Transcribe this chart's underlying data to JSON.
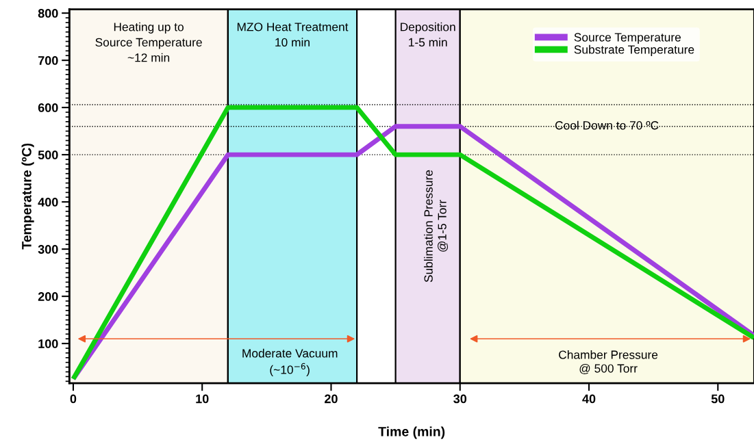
{
  "chart_data": {
    "type": "line",
    "xlabel": "Time (min)",
    "ylabel": "Temperature (ºC)",
    "xlim": [
      -0.3,
      52.8
    ],
    "xticks": [
      0,
      10,
      20,
      30,
      40,
      50
    ],
    "ylim": [
      16,
      808
    ],
    "yticks": [
      100,
      200,
      300,
      400,
      500,
      600,
      700,
      800
    ],
    "grid": false,
    "legend": "top right",
    "line_style": "solid",
    "marker": "none",
    "series": [
      {
        "name": "Source Temperature",
        "color": "#a040e0",
        "x": [
          0,
          12,
          22,
          25,
          30,
          52.8
        ],
        "values": [
          25,
          500,
          500,
          560,
          560,
          117
        ]
      },
      {
        "name": "Substrate Temperature",
        "color": "#10d010",
        "x": [
          0,
          12,
          22,
          25,
          30,
          52.8
        ],
        "values": [
          25,
          600,
          600,
          500,
          500,
          112
        ]
      }
    ],
    "bands": [
      {
        "axis": "x",
        "from": -0.3,
        "to": 12,
        "label": "Heating up to\nSource Temperature\n~12 min",
        "color": "#fcf8f0"
      },
      {
        "axis": "x",
        "from": 12,
        "to": 22,
        "label": "MZO Heat Treatment\n10 min",
        "color": "#a8f1f4"
      },
      {
        "axis": "x",
        "from": 25,
        "to": 30,
        "label": "Deposition\n1-5 min",
        "color": "#eee0f2"
      },
      {
        "axis": "x",
        "from": 30,
        "to": 52.8,
        "color": "#fbfbe6"
      }
    ],
    "ref_lines": [
      {
        "axis": "y",
        "value": 606,
        "color": "#000000",
        "line_style": "dotted"
      },
      {
        "axis": "y",
        "value": 560,
        "label": "Cool Down to 70 ºC",
        "color": "#000000",
        "line_style": "dotted"
      },
      {
        "axis": "y",
        "value": 500,
        "color": "#000000",
        "line_style": "dotted"
      }
    ],
    "annotations": [
      "Sublimation Pressure\n@1-5 Torr",
      "Moderate Vacuum\n(~10$^{−6}$)",
      "Chamber Pressure\n@ 500 Torr"
    ]
  }
}
